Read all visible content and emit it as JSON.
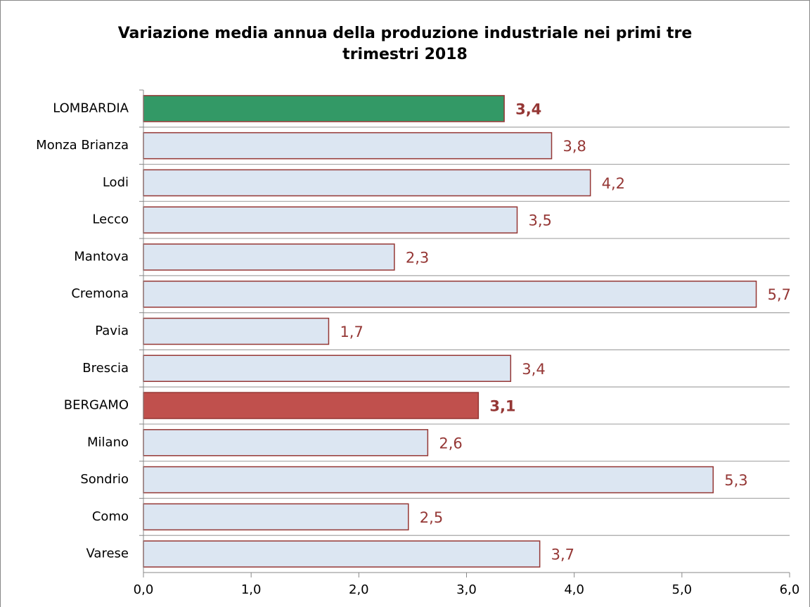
{
  "chart_data": {
    "type": "bar",
    "orientation": "horizontal",
    "title": "Variazione media annua della produzione industriale nei primi tre trimestri 2018",
    "categories": [
      "LOMBARDIA",
      "Monza Brianza",
      "Lodi",
      "Lecco",
      "Mantova",
      "Cremona",
      "Pavia",
      "Brescia",
      "BERGAMO",
      "Milano",
      "Sondrio",
      "Como",
      "Varese"
    ],
    "values": [
      3.35,
      3.79,
      4.15,
      3.47,
      2.33,
      5.69,
      1.72,
      3.41,
      3.11,
      2.64,
      5.29,
      2.46,
      3.68
    ],
    "value_labels": [
      "3,4",
      "3,8",
      "4,2",
      "3,5",
      "2,3",
      "5,7",
      "1,7",
      "3,4",
      "3,1",
      "2,6",
      "5,3",
      "2,5",
      "3,7"
    ],
    "colors": [
      "#339966",
      "#dce6f2",
      "#dce6f2",
      "#dce6f2",
      "#dce6f2",
      "#dce6f2",
      "#dce6f2",
      "#dce6f2",
      "#c0504d",
      "#dce6f2",
      "#dce6f2",
      "#dce6f2",
      "#dce6f2"
    ],
    "value_label_bold": [
      true,
      false,
      false,
      false,
      false,
      false,
      false,
      false,
      true,
      false,
      false,
      false,
      false
    ],
    "edge_color": "#953735",
    "value_label_color": "#953735",
    "xlim": [
      0,
      6
    ],
    "xticks": [
      {
        "value": 0,
        "label": "0,0"
      },
      {
        "value": 1,
        "label": "1,0"
      },
      {
        "value": 2,
        "label": "2,0"
      },
      {
        "value": 3,
        "label": "3,0"
      },
      {
        "value": 4,
        "label": "4,0"
      },
      {
        "value": 5,
        "label": "5,0"
      },
      {
        "value": 6,
        "label": "6,0"
      }
    ]
  }
}
